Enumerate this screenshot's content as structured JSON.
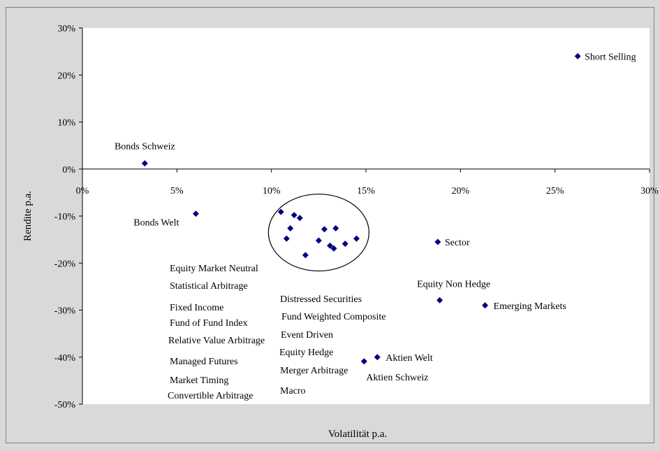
{
  "chart_data": {
    "type": "scatter",
    "title": "",
    "xlabel": "Volatilität p.a.",
    "ylabel": "Rendite p.a.",
    "xlim": [
      0,
      30
    ],
    "ylim": [
      -50,
      30
    ],
    "x_ticks": [
      "0%",
      "5%",
      "10%",
      "15%",
      "20%",
      "25%",
      "30%"
    ],
    "y_ticks": [
      "30%",
      "20%",
      "10%",
      "0%",
      "-10%",
      "-20%",
      "-30%",
      "-40%",
      "-50%"
    ],
    "grid": false,
    "marker_color": "#000080",
    "plot_area_color": "#ffffff",
    "background_color": "#d9d9d9",
    "points": [
      {
        "label": "Short Selling",
        "x": 26.2,
        "y": 24.0
      },
      {
        "label": "Bonds Schweiz",
        "x": 3.3,
        "y": 1.2
      },
      {
        "label": "Bonds Welt",
        "x": 6.0,
        "y": -9.5
      },
      {
        "label": "Sector",
        "x": 18.8,
        "y": -15.5
      },
      {
        "label": "Equity Non Hedge",
        "x": 18.9,
        "y": -27.9
      },
      {
        "label": "Emerging Markets",
        "x": 21.3,
        "y": -29.0
      },
      {
        "label": "Aktien Welt",
        "x": 15.6,
        "y": -40.0
      },
      {
        "label": "Aktien Schweiz",
        "x": 14.9,
        "y": -40.9
      },
      {
        "label": "",
        "x": 10.5,
        "y": -9.1
      },
      {
        "label": "",
        "x": 11.2,
        "y": -9.8
      },
      {
        "label": "",
        "x": 11.5,
        "y": -10.4
      },
      {
        "label": "",
        "x": 11.0,
        "y": -12.6
      },
      {
        "label": "",
        "x": 10.8,
        "y": -14.8
      },
      {
        "label": "",
        "x": 11.8,
        "y": -18.3
      },
      {
        "label": "",
        "x": 12.5,
        "y": -15.2
      },
      {
        "label": "",
        "x": 12.8,
        "y": -12.8
      },
      {
        "label": "",
        "x": 13.1,
        "y": -16.3
      },
      {
        "label": "",
        "x": 13.3,
        "y": -16.9
      },
      {
        "label": "",
        "x": 13.4,
        "y": -12.6
      },
      {
        "label": "",
        "x": 13.9,
        "y": -15.9
      },
      {
        "label": "",
        "x": 14.5,
        "y": -14.8
      }
    ],
    "cluster_ellipse": {
      "cx": 12.5,
      "cy": -13.5
    },
    "cluster_labels_left": [
      "Equity Market Neutral",
      "Statistical Arbitrage",
      "Fixed Income",
      "Fund of Fund Index",
      "Relative Value Arbitrage",
      "Managed Futures",
      "Market Timing",
      "Convertible Arbitrage"
    ],
    "cluster_labels_right": [
      "Distressed Securities",
      "Fund Weighted Composite",
      "Event Driven",
      "Equity Hedge",
      "Merger Arbitrage",
      "Macro"
    ]
  }
}
